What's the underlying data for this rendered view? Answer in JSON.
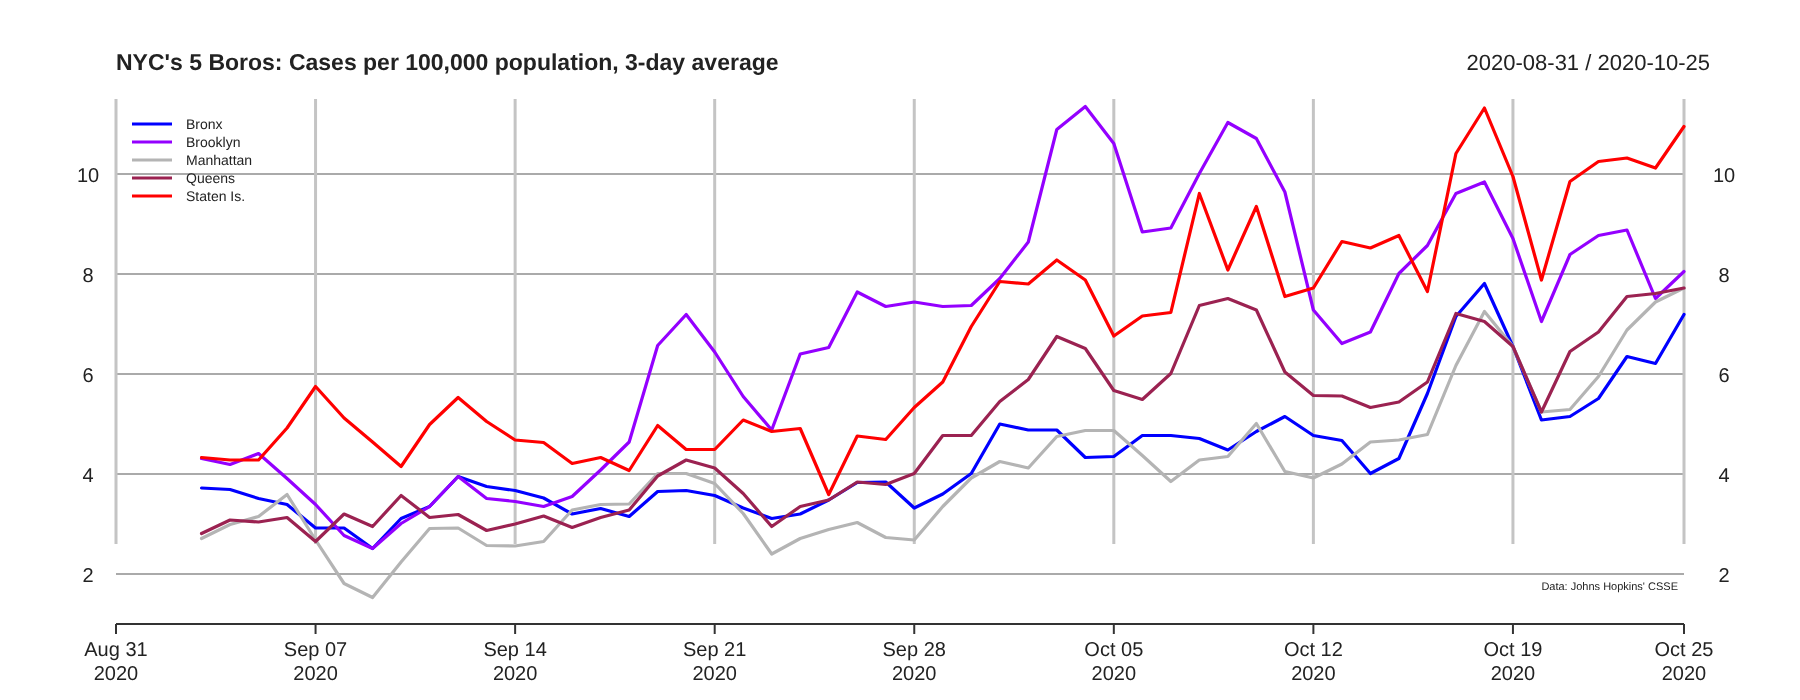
{
  "chart_data": {
    "type": "line",
    "title": "NYC's 5 Boros: Cases per 100,000 population, 3-day average",
    "subtitle": "2020-08-31 / 2020-10-25",
    "annotations": [
      "Data: Johns Hopkins' CSSE"
    ],
    "x": [
      "2020-09-03",
      "2020-09-04",
      "2020-09-05",
      "2020-09-06",
      "2020-09-07",
      "2020-09-08",
      "2020-09-09",
      "2020-09-10",
      "2020-09-11",
      "2020-09-12",
      "2020-09-13",
      "2020-09-14",
      "2020-09-15",
      "2020-09-16",
      "2020-09-17",
      "2020-09-18",
      "2020-09-19",
      "2020-09-20",
      "2020-09-21",
      "2020-09-22",
      "2020-09-23",
      "2020-09-24",
      "2020-09-25",
      "2020-09-26",
      "2020-09-27",
      "2020-09-28",
      "2020-09-29",
      "2020-09-30",
      "2020-10-01",
      "2020-10-02",
      "2020-10-03",
      "2020-10-04",
      "2020-10-05",
      "2020-10-06",
      "2020-10-07",
      "2020-10-08",
      "2020-10-09",
      "2020-10-10",
      "2020-10-11",
      "2020-10-12",
      "2020-10-13",
      "2020-10-14",
      "2020-10-15",
      "2020-10-16",
      "2020-10-17",
      "2020-10-18",
      "2020-10-19",
      "2020-10-20",
      "2020-10-21",
      "2020-10-22",
      "2020-10-23",
      "2020-10-24",
      "2020-10-25"
    ],
    "series": [
      {
        "name": "Bronx",
        "color": "#0000ff",
        "values": [
          3.72,
          3.69,
          3.51,
          3.39,
          2.92,
          2.92,
          2.51,
          3.11,
          3.35,
          3.95,
          3.75,
          3.67,
          3.52,
          3.2,
          3.31,
          3.15,
          3.65,
          3.67,
          3.57,
          3.32,
          3.11,
          3.2,
          3.48,
          3.83,
          3.84,
          3.32,
          3.6,
          4.01,
          5.0,
          4.88,
          4.88,
          4.33,
          4.35,
          4.77,
          4.77,
          4.71,
          4.48,
          4.85,
          5.15,
          4.77,
          4.67,
          4.01,
          4.31,
          5.61,
          7.15,
          7.81,
          6.55,
          5.08,
          5.15,
          5.51,
          6.35,
          6.21,
          7.19
        ]
      },
      {
        "name": "Brooklyn",
        "color": "#9400ff",
        "values": [
          4.31,
          4.19,
          4.41,
          3.91,
          3.39,
          2.77,
          2.51,
          3.01,
          3.35,
          3.95,
          3.51,
          3.45,
          3.35,
          3.55,
          4.08,
          4.64,
          6.57,
          7.19,
          6.44,
          5.55,
          4.88,
          6.4,
          6.53,
          7.64,
          7.35,
          7.44,
          7.35,
          7.37,
          7.91,
          8.64,
          10.89,
          11.35,
          10.61,
          8.84,
          8.92,
          10.01,
          11.03,
          10.71,
          9.64,
          7.28,
          6.61,
          6.84,
          8.01,
          8.57,
          9.61,
          9.84,
          8.71,
          7.05,
          8.39,
          8.77,
          8.88,
          7.51,
          8.05
        ]
      },
      {
        "name": "Manhattan",
        "color": "#b4b4b4",
        "values": [
          2.71,
          2.99,
          3.15,
          3.59,
          2.68,
          1.81,
          1.53,
          2.24,
          2.91,
          2.92,
          2.57,
          2.56,
          2.65,
          3.28,
          3.39,
          3.4,
          4.01,
          4.01,
          3.81,
          3.21,
          2.4,
          2.71,
          2.89,
          3.03,
          2.73,
          2.68,
          3.35,
          3.92,
          4.25,
          4.12,
          4.75,
          4.87,
          4.87,
          4.37,
          3.85,
          4.28,
          4.35,
          5.01,
          4.05,
          3.92,
          4.2,
          4.64,
          4.68,
          4.79,
          6.17,
          7.25,
          6.55,
          5.24,
          5.29,
          5.95,
          6.88,
          7.44,
          7.72
        ]
      },
      {
        "name": "Queens",
        "color": "#9b2251",
        "values": [
          2.81,
          3.08,
          3.04,
          3.13,
          2.65,
          3.2,
          2.95,
          3.57,
          3.13,
          3.19,
          2.87,
          3.0,
          3.16,
          2.93,
          3.13,
          3.28,
          3.96,
          4.28,
          4.12,
          3.61,
          2.95,
          3.35,
          3.48,
          3.84,
          3.79,
          4.01,
          4.77,
          4.77,
          5.45,
          5.89,
          6.75,
          6.51,
          5.67,
          5.49,
          6.01,
          7.37,
          7.51,
          7.28,
          6.04,
          5.57,
          5.56,
          5.33,
          5.44,
          5.84,
          7.21,
          7.05,
          6.55,
          5.24,
          6.45,
          6.84,
          7.55,
          7.61,
          7.72
        ]
      },
      {
        "name": "Staten Is.",
        "color": "#ff0000",
        "values": [
          4.33,
          4.28,
          4.28,
          4.92,
          5.75,
          5.12,
          4.64,
          4.15,
          4.99,
          5.53,
          5.05,
          4.68,
          4.63,
          4.21,
          4.33,
          4.07,
          4.97,
          4.49,
          4.49,
          5.08,
          4.85,
          4.91,
          3.59,
          4.76,
          4.69,
          5.33,
          5.84,
          6.95,
          7.85,
          7.8,
          8.28,
          7.88,
          6.76,
          7.16,
          7.23,
          9.61,
          8.08,
          9.35,
          7.55,
          7.72,
          8.65,
          8.52,
          8.77,
          7.65,
          10.41,
          11.32,
          9.95,
          7.88,
          9.85,
          10.25,
          10.32,
          10.12,
          10.95
        ]
      }
    ],
    "xlim": [
      "2020-08-31",
      "2020-10-25"
    ],
    "xticks": [
      {
        "value": "2020-08-31",
        "label": "Aug 31\n2020"
      },
      {
        "value": "2020-09-07",
        "label": "Sep 07\n2020"
      },
      {
        "value": "2020-09-14",
        "label": "Sep 14\n2020"
      },
      {
        "value": "2020-09-21",
        "label": "Sep 21\n2020"
      },
      {
        "value": "2020-09-28",
        "label": "Sep 28\n2020"
      },
      {
        "value": "2020-10-05",
        "label": "Oct 05\n2020"
      },
      {
        "value": "2020-10-12",
        "label": "Oct 12\n2020"
      },
      {
        "value": "2020-10-19",
        "label": "Oct 19\n2020"
      },
      {
        "value": "2020-10-25",
        "label": "Oct 25\n2020"
      }
    ],
    "ylim": [
      1,
      11.5
    ],
    "yticks": [
      2,
      4,
      6,
      8,
      10
    ],
    "y2lim": [
      1,
      11.5
    ],
    "y2ticks": [
      2,
      4,
      6,
      8,
      10
    ],
    "grid": true,
    "legend": "top left",
    "marker": "none",
    "line_style": "solid"
  }
}
